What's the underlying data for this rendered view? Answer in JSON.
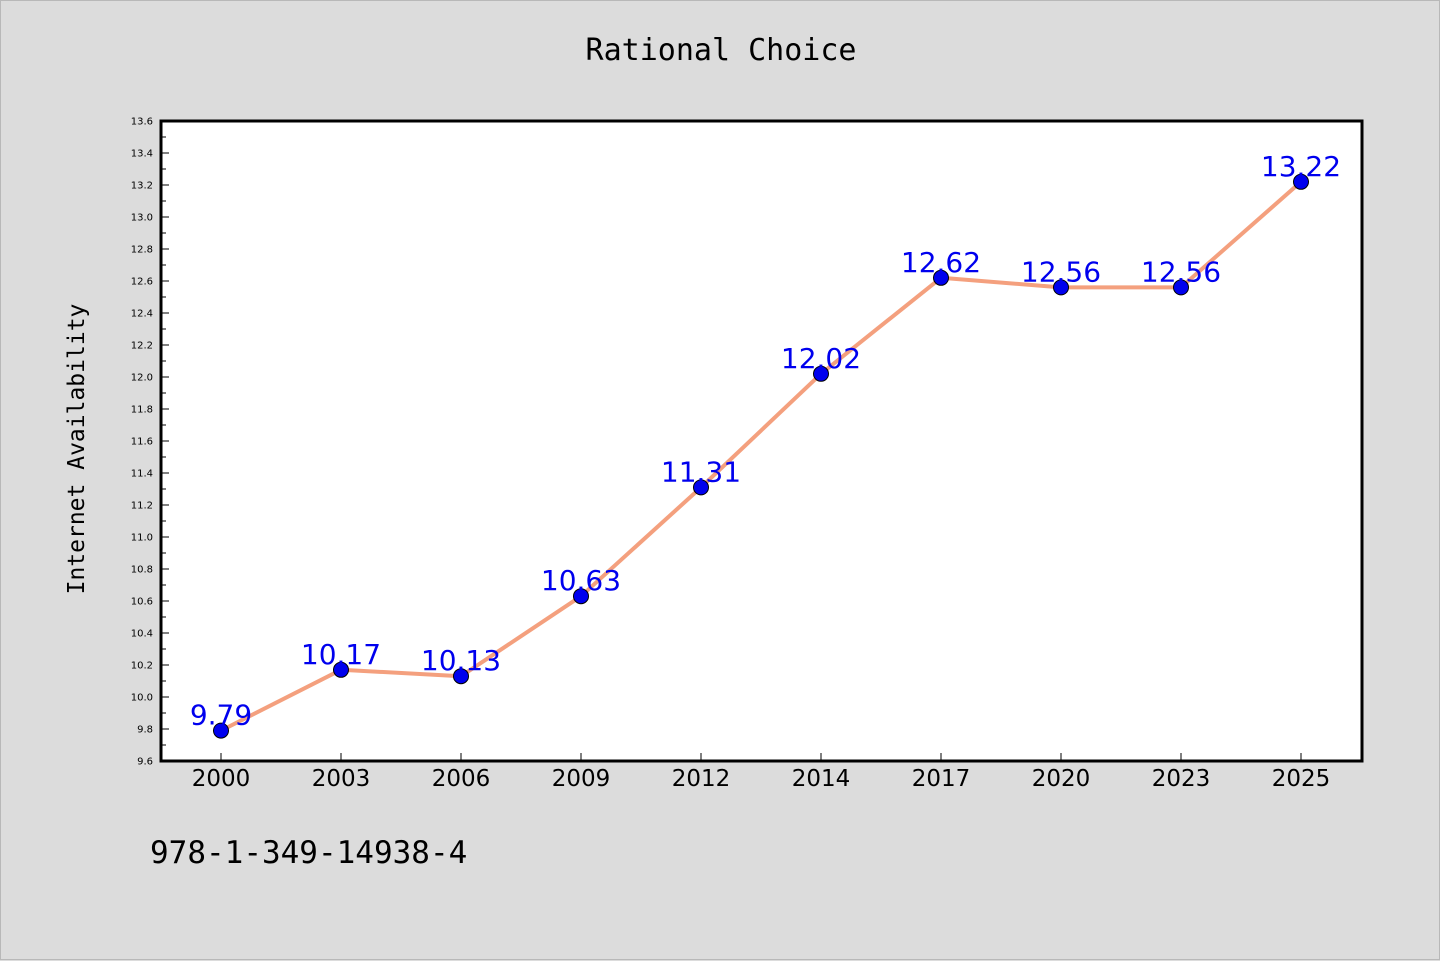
{
  "chart_data": {
    "type": "line",
    "title": "Rational Choice",
    "xlabel": "",
    "ylabel": "Internet Availability",
    "categories": [
      "2000",
      "2003",
      "2006",
      "2009",
      "2012",
      "2014",
      "2017",
      "2020",
      "2023",
      "2025"
    ],
    "series": [
      {
        "values": [
          9.79,
          10.17,
          10.13,
          10.63,
          11.31,
          12.02,
          12.62,
          12.56,
          12.56,
          13.22
        ],
        "data_labels": [
          "9.79",
          "10.17",
          "10.13",
          "10.63",
          "11.31",
          "12.02",
          "12.62",
          "12.56",
          "12.56",
          "13.22"
        ],
        "line_color": "#f4a07e",
        "marker_color": "#0000ee"
      }
    ],
    "ylim": [
      9.6,
      13.6
    ],
    "yticks": [
      "9.6",
      "9.8",
      "10.0",
      "10.2",
      "10.4",
      "10.6",
      "10.8",
      "11.0",
      "11.2",
      "11.4",
      "11.6",
      "11.8",
      "12.0",
      "12.2",
      "12.4",
      "12.6",
      "12.8",
      "13.0",
      "13.2",
      "13.4",
      "13.6"
    ],
    "grid": false,
    "legend": "none"
  },
  "footer": {
    "isbn": "978-1-349-14938-4"
  },
  "colors": {
    "background": "#dcdcdc",
    "plot_background": "#ffffff",
    "label_color": "#0000ee"
  }
}
